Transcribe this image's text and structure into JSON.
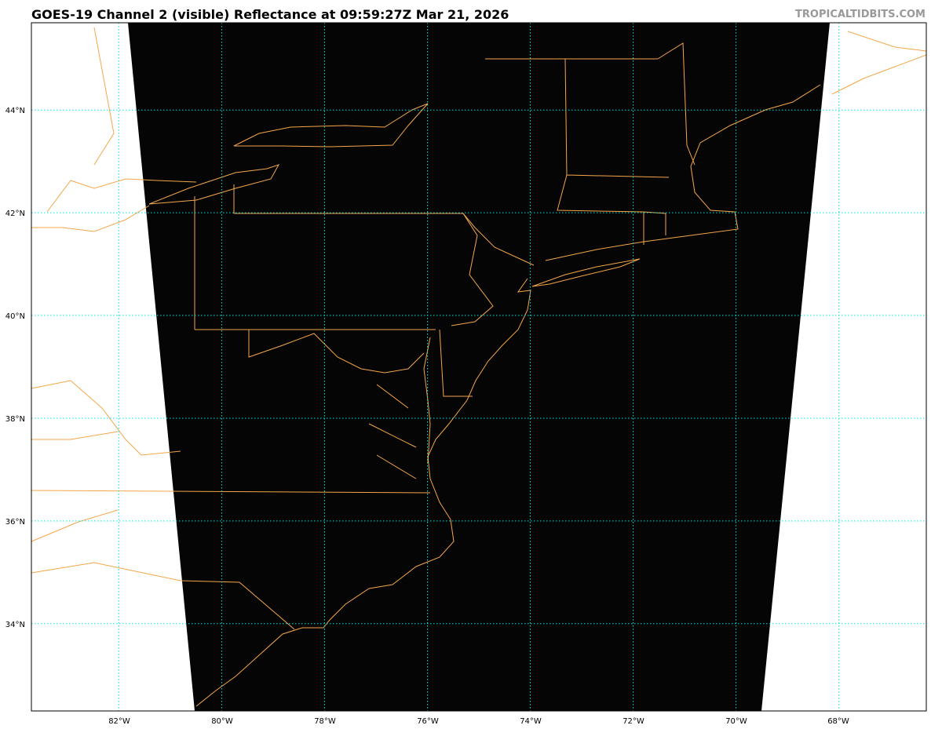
{
  "title": "GOES-19 Channel 2 (visible) Reflectance at 09:59:27Z Mar 21, 2026",
  "watermark": "TROPICALTIDBITS.COM",
  "map": {
    "extent": {
      "lon_min": -83.7,
      "lon_max": -66.3,
      "lat_min": 32.3,
      "lat_max": 45.7
    },
    "lat_labels": [
      "44°N",
      "42°N",
      "40°N",
      "38°N",
      "36°N",
      "34°N"
    ],
    "lon_labels": [
      "82°W",
      "80°W",
      "78°W",
      "76°W",
      "74°W",
      "72°W",
      "70°W",
      "68°W"
    ],
    "colors": {
      "imagery": "#000000",
      "borders": "#f4a64a",
      "gridlines": "#00e5e5",
      "no_data": "#ffffff"
    }
  }
}
